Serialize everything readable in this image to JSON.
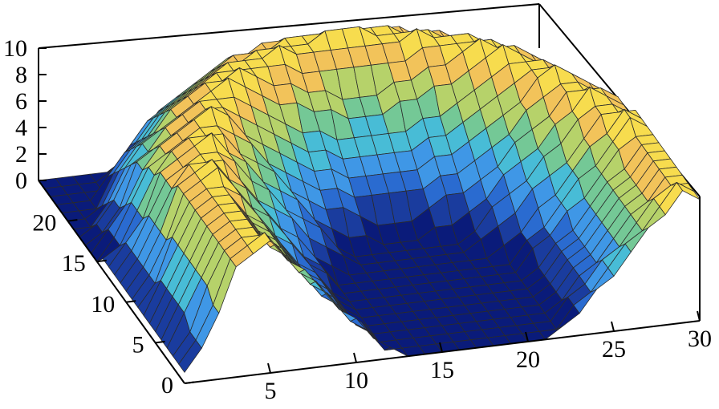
{
  "chart_data": {
    "type": "surface",
    "title": "",
    "xlabel": "",
    "ylabel": "",
    "zlabel": "",
    "x_ticks": [
      "5",
      "10",
      "15",
      "20",
      "25",
      "30"
    ],
    "y_ticks": [
      "0",
      "5",
      "10",
      "15",
      "20"
    ],
    "z_ticks": [
      "0",
      "2",
      "4",
      "6",
      "8",
      "10"
    ],
    "xlim": [
      0,
      30
    ],
    "ylim": [
      0,
      25
    ],
    "zlim": [
      0,
      10
    ],
    "grid": false,
    "colormap": [
      "#0a1b7a",
      "#1a3c9e",
      "#2a6bd0",
      "#3f97e6",
      "#48bcd6",
      "#74c896",
      "#b6d26a",
      "#f2c35a",
      "#f7dc4e"
    ],
    "mesh_color": "#2b2b2b",
    "description_of_values": "bowl-shaped surface: z≈0 in a flat region around x 10–25, y 0–15; rising to ≈9–10 along the rim at high y and high x"
  }
}
